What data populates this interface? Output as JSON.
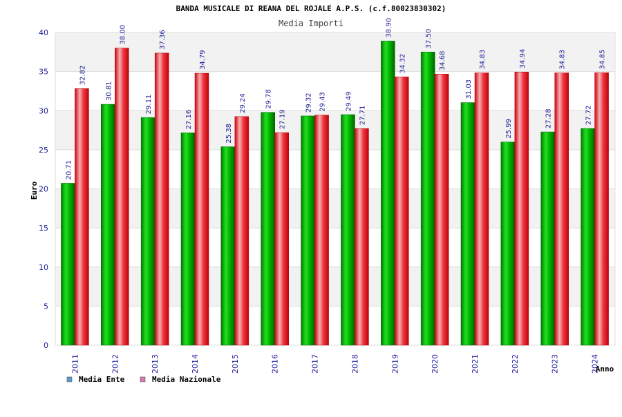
{
  "chart_data": {
    "type": "bar",
    "title": "BANDA MUSICALE DI REANA DEL ROJALE A.P.S. (c.f.80023830302)",
    "subtitle": "Media Importi",
    "xlabel": "Anno",
    "ylabel": "Euro",
    "ylim": [
      0,
      40
    ],
    "yticks": [
      0,
      5,
      10,
      15,
      20,
      25,
      30,
      35,
      40
    ],
    "grid": true,
    "legend_position": "bottom-left",
    "categories": [
      "2011",
      "2012",
      "2013",
      "2014",
      "2015",
      "2016",
      "2017",
      "2018",
      "2019",
      "2020",
      "2021",
      "2022",
      "2023",
      "2024"
    ],
    "series": [
      {
        "name": "Media Ente",
        "color": "#00b000",
        "legend_color": "#5b9bd5",
        "values": [
          20.71,
          30.81,
          29.11,
          27.16,
          25.38,
          29.78,
          29.32,
          29.49,
          38.9,
          37.5,
          31.03,
          25.99,
          27.28,
          27.72
        ],
        "labels": [
          "20.71",
          "30.81",
          "29.11",
          "27.16",
          "25.38",
          "29.78",
          "29.32",
          "29.49",
          "38.90",
          "37.50",
          "31.03",
          "25.99",
          "27.28",
          "27.72"
        ]
      },
      {
        "name": "Media Nazionale",
        "color": "#e8101a",
        "legend_color": "#d97ab0",
        "values": [
          32.82,
          38.0,
          37.36,
          34.79,
          29.24,
          27.19,
          29.43,
          27.71,
          34.32,
          34.68,
          34.83,
          34.94,
          34.83,
          34.85
        ],
        "labels": [
          "32.82",
          "38.00",
          "37.36",
          "34.79",
          "29.24",
          "27.19",
          "29.43",
          "27.71",
          "34.32",
          "34.68",
          "34.83",
          "34.94",
          "34.83",
          "34.85"
        ]
      }
    ]
  }
}
